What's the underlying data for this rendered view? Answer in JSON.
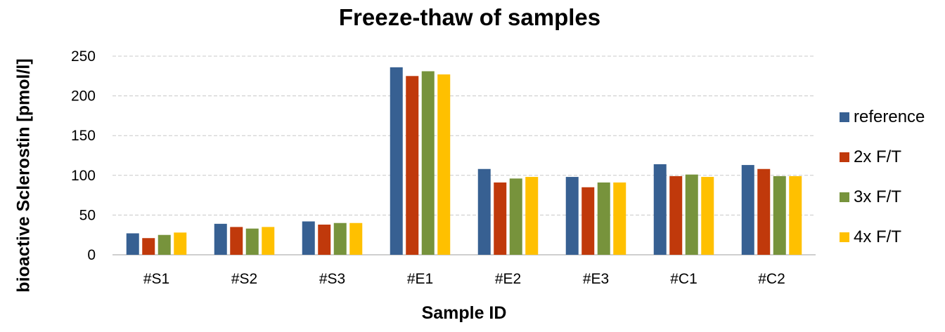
{
  "chart_data": {
    "type": "bar",
    "title": "Freeze-thaw of samples",
    "xlabel": "Sample ID",
    "ylabel": "bioactive Sclerostin [pmol/l]",
    "categories": [
      "#S1",
      "#S2",
      "#S3",
      "#E1",
      "#E2",
      "#E3",
      "#C1",
      "#C2"
    ],
    "ylim": [
      0,
      250
    ],
    "yticks": [
      0,
      50,
      100,
      150,
      200,
      250
    ],
    "grid": true,
    "legend_position": "right",
    "series": [
      {
        "name": "reference",
        "color": "#376092",
        "values": [
          27,
          39,
          42,
          236,
          108,
          98,
          114,
          113
        ]
      },
      {
        "name": "2x F/T",
        "color": "#c0390b",
        "values": [
          21,
          35,
          38,
          225,
          91,
          85,
          99,
          108
        ]
      },
      {
        "name": "3x F/T",
        "color": "#77933c",
        "values": [
          25,
          33,
          40,
          231,
          96,
          91,
          101,
          99
        ]
      },
      {
        "name": "4x F/T",
        "color": "#ffc000",
        "values": [
          28,
          35,
          40,
          227,
          98,
          91,
          98,
          99
        ]
      }
    ]
  }
}
